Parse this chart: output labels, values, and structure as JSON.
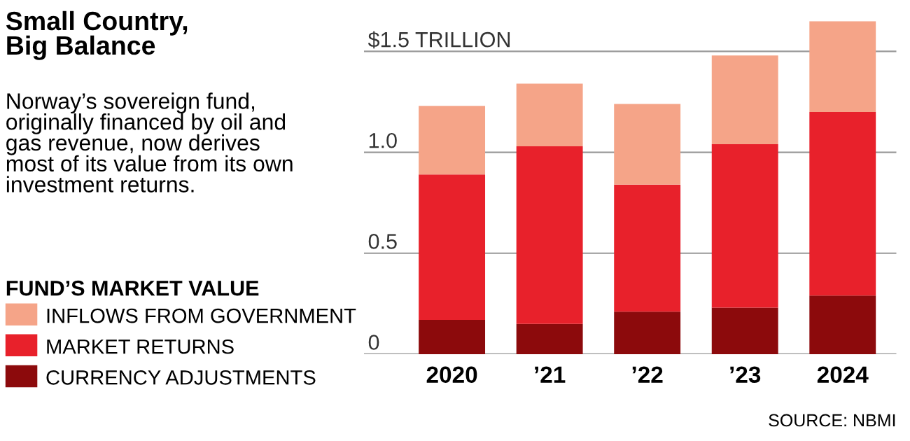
{
  "chart_data": {
    "type": "bar",
    "title": "Small Country,\nBig Balance",
    "subtitle": "Norway’s sovereign fund,\noriginally financed by oil and\ngas revenue, now derives\nmost of its value from its own\ninvestment returns.",
    "legend_title": "FUND’S MARKET VALUE",
    "categories": [
      "2020",
      "’21",
      "’22",
      "’23",
      "2024"
    ],
    "stacked": true,
    "series": [
      {
        "name": "CURRENCY ADJUSTMENTS",
        "color": "#8c0a0c",
        "values": [
          0.17,
          0.15,
          0.21,
          0.23,
          0.29
        ]
      },
      {
        "name": "MARKET RETURNS",
        "color": "#e8212b",
        "values": [
          0.72,
          0.88,
          0.63,
          0.81,
          0.91
        ]
      },
      {
        "name": "INFLOWS FROM GOVERNMENT",
        "color": "#f5a488",
        "values": [
          0.34,
          0.31,
          0.4,
          0.44,
          0.45
        ]
      }
    ],
    "ylim": [
      0,
      1.65
    ],
    "yticks": [
      0,
      0.5,
      {
        "value": 1.0,
        "label": "1.0"
      },
      {
        "value": 1.5,
        "label": "$1.5 TRILLION"
      }
    ],
    "grid": "y",
    "legend": "left",
    "annotations": [
      "SOURCE: NBMI"
    ]
  }
}
